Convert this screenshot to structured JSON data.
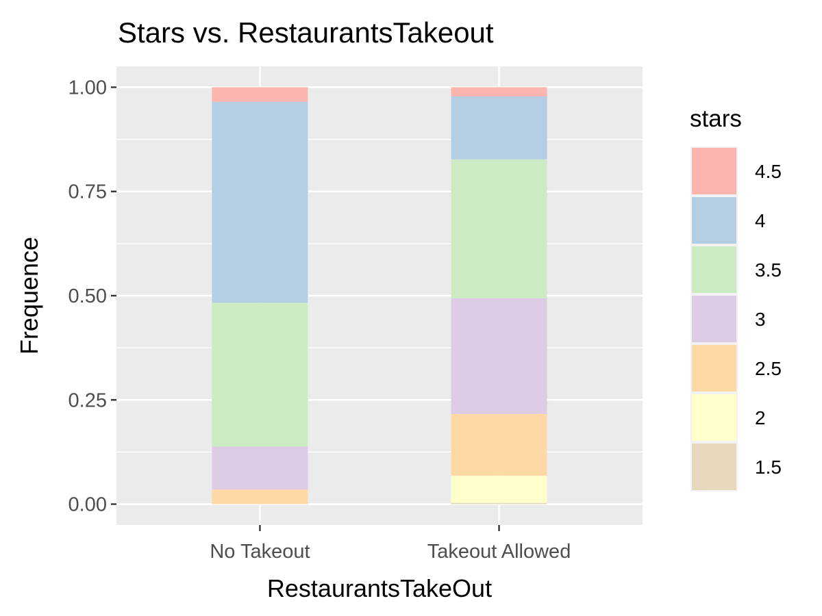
{
  "chart_data": {
    "type": "bar",
    "stacked": true,
    "title": "Stars vs. RestaurantsTakeout",
    "xlabel": "RestaurantsTakeOut",
    "ylabel": "Frequence",
    "ylim": [
      -0.05,
      1.05
    ],
    "yticks": [
      "0.00",
      "0.25",
      "0.50",
      "0.75",
      "1.00"
    ],
    "ytick_values": [
      0,
      0.25,
      0.5,
      0.75,
      1.0
    ],
    "categories": [
      "No Takeout",
      "Takeout Allowed"
    ],
    "legend_title": "stars",
    "legend_position": "right",
    "grid": true,
    "series": [
      {
        "name": "1.5",
        "color": "#E5D8BD",
        "values": [
          0.0,
          0.003
        ]
      },
      {
        "name": "2",
        "color": "#FFFFCC",
        "values": [
          0.0,
          0.065
        ]
      },
      {
        "name": "2.5",
        "color": "#FED9A6",
        "values": [
          0.035,
          0.148
        ]
      },
      {
        "name": "3",
        "color": "#DECBE4",
        "values": [
          0.103,
          0.278
        ]
      },
      {
        "name": "3.5",
        "color": "#CCEBC5",
        "values": [
          0.345,
          0.333
        ]
      },
      {
        "name": "4",
        "color": "#B3CDE3",
        "values": [
          0.482,
          0.151
        ]
      },
      {
        "name": "4.5",
        "color": "#FBB4AE",
        "values": [
          0.035,
          0.022
        ]
      }
    ],
    "legend_order": [
      "4.5",
      "4",
      "3.5",
      "3",
      "2.5",
      "2",
      "1.5"
    ]
  }
}
